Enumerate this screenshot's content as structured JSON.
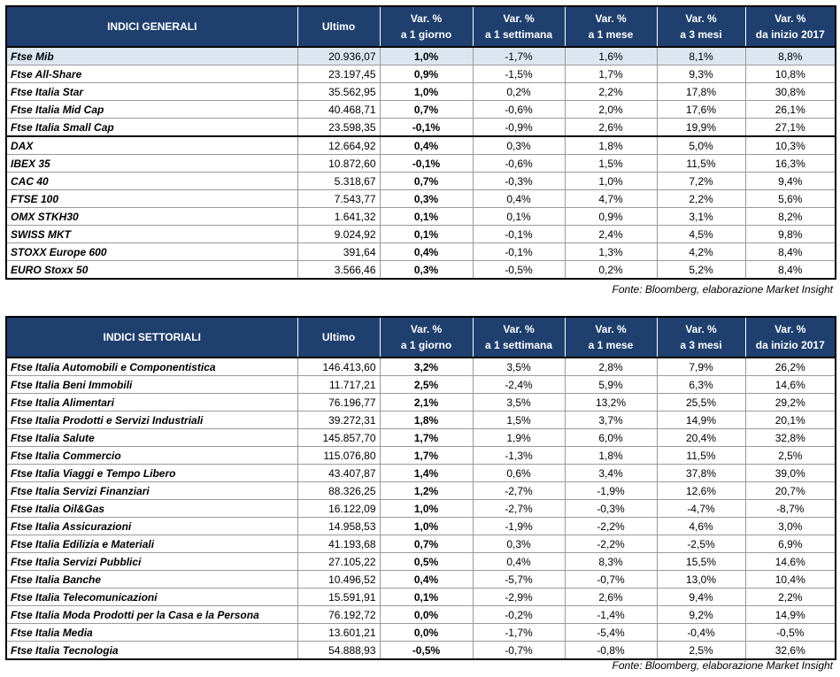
{
  "tables": [
    {
      "header": [
        [
          "INDICI GENERALI"
        ],
        [
          "Ultimo"
        ],
        [
          "Var. %",
          "a 1 giorno"
        ],
        [
          "Var. %",
          "a 1 settimana"
        ],
        [
          "Var. %",
          "a 1 mese"
        ],
        [
          "Var. %",
          "a 3 mesi"
        ],
        [
          "Var. %",
          "da inizio 2017"
        ]
      ],
      "groups": [
        [
          [
            "Ftse Mib",
            "20.936,07",
            "1,0%",
            "-1,7%",
            "1,6%",
            "8,1%",
            "8,8%"
          ],
          [
            "Ftse All-Share",
            "23.197,45",
            "0,9%",
            "-1,5%",
            "1,7%",
            "9,3%",
            "10,8%"
          ],
          [
            "Ftse Italia Star",
            "35.562,95",
            "1,0%",
            "0,2%",
            "2,2%",
            "17,8%",
            "30,8%"
          ],
          [
            "Ftse Italia Mid Cap",
            "40.468,71",
            "0,7%",
            "-0,6%",
            "2,0%",
            "17,6%",
            "26,1%"
          ],
          [
            "Ftse Italia Small Cap",
            "23.598,35",
            "-0,1%",
            "-0,9%",
            "2,6%",
            "19,9%",
            "27,1%"
          ]
        ],
        [
          [
            "DAX",
            "12.664,92",
            "0,4%",
            "0,3%",
            "1,8%",
            "5,0%",
            "10,3%"
          ],
          [
            "IBEX 35",
            "10.872,60",
            "-0,1%",
            "-0,6%",
            "1,5%",
            "11,5%",
            "16,3%"
          ],
          [
            "CAC 40",
            "5.318,67",
            "0,7%",
            "-0,3%",
            "1,0%",
            "7,2%",
            "9,4%"
          ],
          [
            "FTSE 100",
            "7.543,77",
            "0,3%",
            "0,4%",
            "4,7%",
            "2,2%",
            "5,6%"
          ],
          [
            "OMX STKH30",
            "1.641,32",
            "0,1%",
            "0,1%",
            "0,9%",
            "3,1%",
            "8,2%"
          ],
          [
            "SWISS MKT",
            "9.024,92",
            "0,1%",
            "-0,1%",
            "2,4%",
            "4,5%",
            "9,8%"
          ],
          [
            "STOXX Europe 600",
            "391,64",
            "0,4%",
            "-0,1%",
            "1,3%",
            "4,2%",
            "8,4%"
          ],
          [
            "EURO Stoxx 50",
            "3.566,46",
            "0,3%",
            "-0,5%",
            "0,2%",
            "5,2%",
            "8,4%"
          ]
        ]
      ],
      "source": "Fonte: Bloomberg, elaborazione Market Insight"
    },
    {
      "header": [
        [
          "INDICI SETTORIALI"
        ],
        [
          "Ultimo"
        ],
        [
          "Var. %",
          "a 1 giorno"
        ],
        [
          "Var. %",
          "a 1 settimana"
        ],
        [
          "Var. %",
          "a 1 mese"
        ],
        [
          "Var. %",
          "a 3 mesi"
        ],
        [
          "Var. %",
          "da inizio 2017"
        ]
      ],
      "groups": [
        [
          [
            "Ftse Italia Automobili e Componentistica",
            "146.413,60",
            "3,2%",
            "3,5%",
            "2,8%",
            "7,9%",
            "26,2%"
          ],
          [
            "Ftse Italia Beni Immobili",
            "11.717,21",
            "2,5%",
            "-2,4%",
            "5,9%",
            "6,3%",
            "14,6%"
          ],
          [
            "Ftse Italia Alimentari",
            "76.196,77",
            "2,1%",
            "3,5%",
            "13,2%",
            "25,5%",
            "29,2%"
          ],
          [
            "Ftse Italia Prodotti e Servizi Industriali",
            "39.272,31",
            "1,8%",
            "1,5%",
            "3,7%",
            "14,9%",
            "20,1%"
          ],
          [
            "Ftse Italia Salute",
            "145.857,70",
            "1,7%",
            "1,9%",
            "6,0%",
            "20,4%",
            "32,8%"
          ],
          [
            "Ftse Italia Commercio",
            "115.076,80",
            "1,7%",
            "-1,3%",
            "1,8%",
            "11,5%",
            "2,5%"
          ],
          [
            "Ftse Italia Viaggi e Tempo Libero",
            "43.407,87",
            "1,4%",
            "0,6%",
            "3,4%",
            "37,8%",
            "39,0%"
          ],
          [
            "Ftse Italia Servizi Finanziari",
            "88.326,25",
            "1,2%",
            "-2,7%",
            "-1,9%",
            "12,6%",
            "20,7%"
          ],
          [
            "Ftse Italia Oil&Gas",
            "16.122,09",
            "1,0%",
            "-2,7%",
            "-0,3%",
            "-4,7%",
            "-8,7%"
          ],
          [
            "Ftse Italia Assicurazioni",
            "14.958,53",
            "1,0%",
            "-1,9%",
            "-2,2%",
            "4,6%",
            "3,0%"
          ],
          [
            "Ftse Italia Edilizia e Materiali",
            "41.193,68",
            "0,7%",
            "0,3%",
            "-2,2%",
            "-2,5%",
            "6,9%"
          ],
          [
            "Ftse Italia Servizi Pubblici",
            "27.105,22",
            "0,5%",
            "0,4%",
            "8,3%",
            "15,5%",
            "14,6%"
          ],
          [
            "Ftse Italia Banche",
            "10.496,52",
            "0,4%",
            "-5,7%",
            "-0,7%",
            "13,0%",
            "10,4%"
          ],
          [
            "Ftse Italia Telecomunicazioni",
            "15.591,91",
            "0,1%",
            "-2,9%",
            "2,6%",
            "9,4%",
            "2,2%"
          ],
          [
            "Ftse Italia Moda Prodotti per la Casa e la Persona",
            "76.192,72",
            "0,0%",
            "-0,2%",
            "-1,4%",
            "9,2%",
            "14,9%"
          ],
          [
            "Ftse Italia Media",
            "13.601,21",
            "0,0%",
            "-1,7%",
            "-5,4%",
            "-0,4%",
            "-0,5%"
          ],
          [
            "Ftse Italia Tecnologia",
            "54.888,93",
            "-0,5%",
            "-0,7%",
            "-0,8%",
            "2,5%",
            "32,6%"
          ]
        ]
      ],
      "source": "Fonte: Bloomberg, elaborazione Market Insight"
    }
  ]
}
